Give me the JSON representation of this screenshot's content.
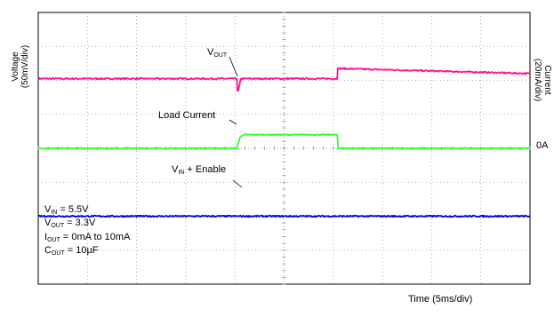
{
  "chart_data": {
    "type": "line",
    "title": "",
    "xlabel": "Time (5ms/div)",
    "ylabel_left": "Voltage\n(50mV/div)",
    "ylabel_right": "Current\n(20mA/div)",
    "x_unit": "ms",
    "xlim": [
      0,
      50
    ],
    "divisions": {
      "x": 10,
      "y": 8
    },
    "grid": true,
    "zero_marker": "0A",
    "series": [
      {
        "name": "VOUT",
        "label_main": "V",
        "label_sub": "OUT",
        "color": "#ff1493",
        "division_level": [
          6.05,
          6.05,
          5.7,
          5.7,
          6.05,
          6.05,
          6.35,
          6.2
        ],
        "x": [
          0,
          20.2,
          20.25,
          20.35,
          20.6,
          30.4,
          30.45,
          50
        ],
        "noise": 0.02
      },
      {
        "name": "Load Current",
        "label_main": "Load Current",
        "label_sub": "",
        "color": "#33ff33",
        "division_level": [
          4.0,
          4.0,
          4.32,
          4.4,
          4.4,
          4.0,
          4.0
        ],
        "x": [
          0,
          20.2,
          20.5,
          21.0,
          30.4,
          30.5,
          50
        ],
        "noise": 0.015
      },
      {
        "name": "VIN + Enable",
        "label_main": "V",
        "label_sub": "IN",
        "label_suffix": " + Enable",
        "color": "#0000ee",
        "division_level": [
          2.0,
          2.0
        ],
        "x": [
          0,
          50
        ],
        "noise": 0.02
      }
    ],
    "conditions": [
      {
        "main": "V",
        "sub": "IN",
        "rest": " = 5.5V"
      },
      {
        "main": "V",
        "sub": "OUT",
        "rest": " = 3.3V"
      },
      {
        "main": "I",
        "sub": "OUT",
        "rest": " = 0mA to 10mA"
      },
      {
        "main": "C",
        "sub": "OUT",
        "rest": " = 10µF"
      }
    ]
  }
}
